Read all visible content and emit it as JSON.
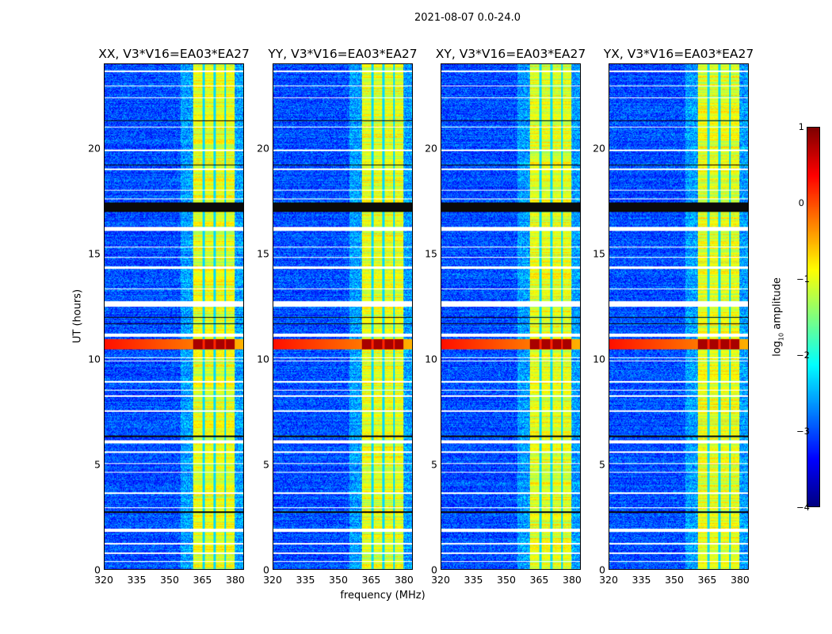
{
  "chart_data": {
    "type": "heatmap",
    "title": "2021-08-07 0.0-24.0",
    "xlabel": "frequency (MHz)",
    "ylabel": "UT (hours)",
    "xlim": [
      320,
      384
    ],
    "ylim": [
      0,
      24
    ],
    "xticks": [
      320,
      335,
      350,
      365,
      380
    ],
    "yticks": [
      0,
      5,
      10,
      15,
      20
    ],
    "panels": [
      {
        "title": "XX, V3*V16=EA03*EA27"
      },
      {
        "title": "YY, V3*V16=EA03*EA27"
      },
      {
        "title": "XY, V3*V16=EA03*EA27"
      },
      {
        "title": "YX, V3*V16=EA03*EA27"
      }
    ],
    "colorbar": {
      "label_prefix": "log",
      "label_sub": "10",
      "label_suffix": " amplitude",
      "range": [
        -4,
        1
      ],
      "ticks": [
        "1",
        "0",
        "−1",
        "−2",
        "−3",
        "−4"
      ],
      "tick_values": [
        1,
        0,
        -1,
        -2,
        -3,
        -4
      ],
      "colormap": "jet"
    },
    "features": {
      "background_log_amp": -3.0,
      "rfi_band_mhz": [
        360.5,
        380
      ],
      "rfi_band_log_amp": -1.0,
      "band_gap_channels_mhz": [
        365.5,
        370.5,
        375.5
      ],
      "strong_rfi_hours": [
        10.45,
        10.95
      ],
      "strong_rfi_log_amp": 0.6,
      "flagged_hours": [
        [
          0.35,
          0.4
        ],
        [
          0.75,
          0.8
        ],
        [
          1.2,
          1.25
        ],
        [
          1.8,
          1.95
        ],
        [
          2.9,
          2.95
        ],
        [
          3.6,
          3.65
        ],
        [
          4.6,
          4.65
        ],
        [
          5.0,
          5.05
        ],
        [
          5.55,
          5.6
        ],
        [
          6.0,
          6.15
        ],
        [
          7.5,
          7.55
        ],
        [
          8.2,
          8.3
        ],
        [
          8.5,
          8.55
        ],
        [
          8.9,
          8.95
        ],
        [
          9.9,
          9.95
        ],
        [
          10.05,
          10.1
        ],
        [
          11.05,
          11.2
        ],
        [
          12.5,
          12.75
        ],
        [
          13.3,
          13.35
        ],
        [
          14.3,
          14.4
        ],
        [
          14.8,
          14.85
        ],
        [
          15.3,
          15.35
        ],
        [
          16.1,
          16.3
        ],
        [
          17.6,
          17.65
        ],
        [
          18.0,
          18.05
        ],
        [
          19.0,
          19.05
        ],
        [
          19.9,
          19.95
        ],
        [
          21.0,
          21.05
        ],
        [
          22.4,
          22.45
        ],
        [
          22.95,
          23.0
        ],
        [
          23.65,
          23.7
        ]
      ],
      "dark_rows_hours": [
        [
          17.0,
          17.45
        ],
        [
          11.65,
          11.7
        ],
        [
          11.95,
          12.0
        ],
        [
          19.2,
          19.25
        ],
        [
          21.3,
          21.35
        ],
        [
          2.7,
          2.75
        ],
        [
          6.3,
          6.35
        ]
      ]
    }
  }
}
